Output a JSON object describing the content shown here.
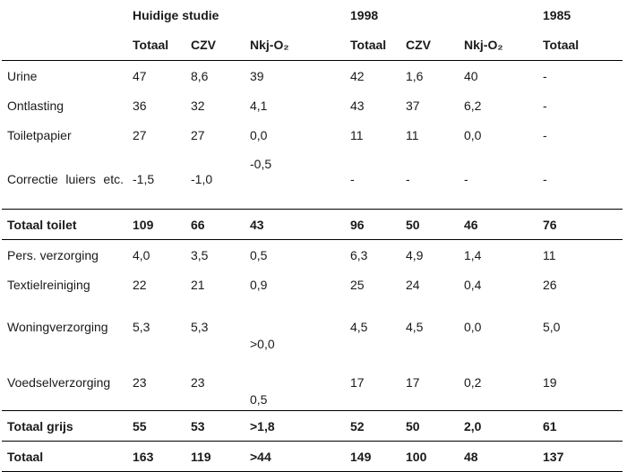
{
  "groups": [
    "Huidige studie",
    "1998",
    "1985"
  ],
  "columns": [
    "Totaal",
    "CZV",
    "Nkj-O₂",
    "Totaal",
    "CZV",
    "Nkj-O₂",
    "Totaal"
  ],
  "rows": [
    {
      "label": "Urine",
      "values": [
        "47",
        "8,6",
        "39",
        "42",
        "1,6",
        "40",
        "-"
      ]
    },
    {
      "label": "Ontlasting",
      "values": [
        "36",
        "32",
        "4,1",
        "43",
        "37",
        "6,2",
        "-"
      ]
    },
    {
      "label": "Toiletpapier",
      "values": [
        "27",
        "27",
        "0,0",
        "11",
        "11",
        "0,0",
        "-"
      ]
    },
    {
      "label": "Correctie luiers etc.",
      "values": [
        "-1,5",
        "-1,0",
        "-0,5",
        "-",
        "-",
        "-",
        "-"
      ]
    },
    {
      "label": "Totaal toilet",
      "values": [
        "109",
        "66",
        "43",
        "96",
        "50",
        "46",
        "76"
      ]
    },
    {
      "label": "Pers. verzorging",
      "values": [
        "4,0",
        "3,5",
        "0,5",
        "6,3",
        "4,9",
        "1,4",
        "11"
      ]
    },
    {
      "label": "Textielreiniging",
      "values": [
        "22",
        "21",
        "0,9",
        "25",
        "24",
        "0,4",
        "26"
      ]
    },
    {
      "label": "Woningverzorging",
      "values": [
        "5,3",
        "5,3",
        ">0,0",
        "4,5",
        "4,5",
        "0,0",
        "5,0"
      ]
    },
    {
      "label": "Voedselverzorging",
      "values": [
        "23",
        "23",
        "0,5",
        "17",
        "17",
        "0,2",
        "19"
      ]
    },
    {
      "label": "Totaal grijs",
      "values": [
        "55",
        "53",
        ">1,8",
        "52",
        "50",
        "2,0",
        "61"
      ]
    },
    {
      "label": "Totaal",
      "values": [
        "163",
        "119",
        ">44",
        "149",
        "100",
        "48",
        "137"
      ]
    }
  ]
}
